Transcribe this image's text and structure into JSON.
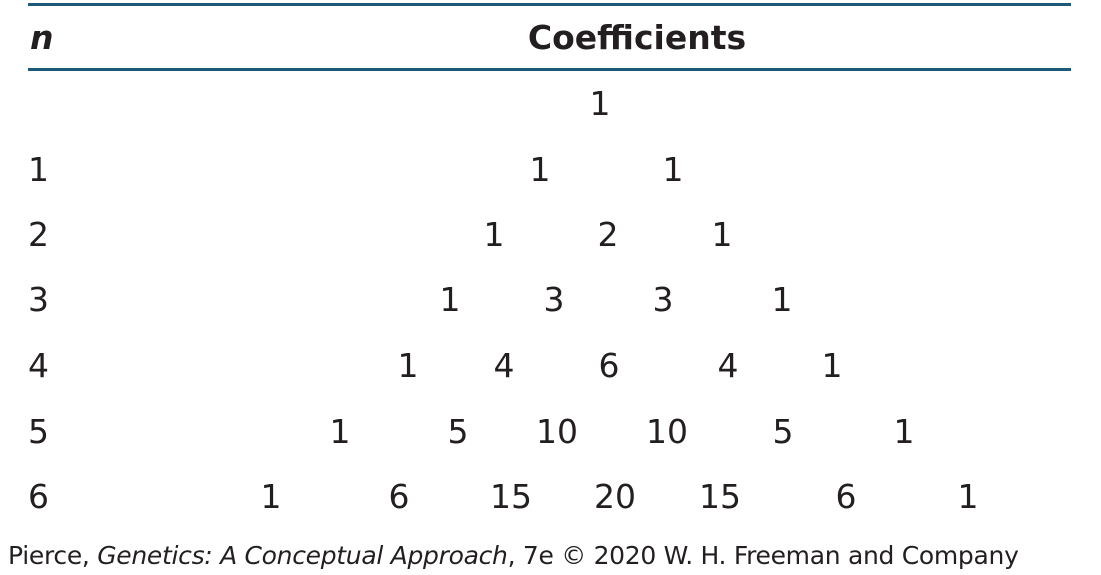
{
  "table": {
    "header": {
      "n": "n",
      "coefficients": "Coefficients"
    },
    "rows": [
      {
        "n": "",
        "coefficients": [
          "1"
        ]
      },
      {
        "n": "1",
        "coefficients": [
          "1",
          "1"
        ]
      },
      {
        "n": "2",
        "coefficients": [
          "1",
          "2",
          "1"
        ]
      },
      {
        "n": "3",
        "coefficients": [
          "1",
          "3",
          "3",
          "1"
        ]
      },
      {
        "n": "4",
        "coefficients": [
          "1",
          "4",
          "6",
          "4",
          "1"
        ]
      },
      {
        "n": "5",
        "coefficients": [
          "1",
          "5",
          "10",
          "10",
          "5",
          "1"
        ]
      },
      {
        "n": "6",
        "coefficients": [
          "1",
          "6",
          "15",
          "20",
          "15",
          "6",
          "1"
        ]
      }
    ]
  },
  "credit": {
    "author": "Pierce, ",
    "title": "Genetics: A Conceptual Approach",
    "rest": ", 7e © 2020 W. H. Freeman and Company"
  },
  "colors": {
    "rule": "#1d5a78",
    "text": "#231f20"
  }
}
